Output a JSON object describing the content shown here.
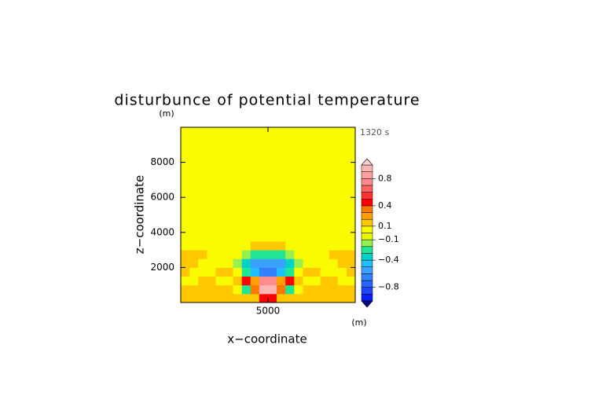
{
  "chart_data": {
    "type": "contour",
    "title": "disturbunce of potential temperature",
    "x_label": "x−coordinate",
    "y_label": "z−coordinate",
    "x_unit": "(m)",
    "y_unit": "(m)",
    "annotation": "1320 s",
    "xlim": [
      0,
      10000
    ],
    "ylim": [
      0,
      10000
    ],
    "xticks": [
      5000
    ],
    "yticks": [
      2000,
      4000,
      6000,
      8000
    ],
    "x": [
      250,
      750,
      1250,
      1750,
      2250,
      2750,
      3250,
      3750,
      4250,
      4750,
      5250,
      5750,
      6250,
      6750,
      7250,
      7750,
      8250,
      8750,
      9250,
      9750
    ],
    "y": [
      250,
      750,
      1250,
      1750,
      2250,
      2750,
      3250,
      3750,
      4250,
      4750,
      5250,
      5750,
      6250,
      6750,
      7250,
      7750,
      8250,
      8750,
      9250,
      9750
    ],
    "z": [
      [
        0.15,
        0.15,
        0.15,
        0.15,
        0.15,
        0.15,
        0.15,
        0.15,
        0.15,
        0.45,
        0.45,
        0.15,
        0.15,
        0.15,
        0.15,
        0.15,
        0.15,
        0.15,
        0.15,
        0.15
      ],
      [
        0.15,
        0.15,
        0.15,
        0.15,
        0.15,
        0.15,
        0.05,
        -0.25,
        0.35,
        0.95,
        0.95,
        0.35,
        -0.25,
        0.05,
        0.15,
        0.15,
        0.15,
        0.15,
        0.15,
        0.15
      ],
      [
        0.05,
        0.05,
        0.15,
        0.15,
        0.05,
        0.05,
        0.15,
        0.45,
        0.25,
        0.75,
        0.75,
        0.25,
        0.45,
        0.15,
        0.05,
        0.05,
        0.15,
        0.15,
        0.05,
        0.05
      ],
      [
        0.15,
        0.05,
        0.05,
        0.05,
        0.15,
        0.15,
        0.05,
        -0.25,
        -0.45,
        -0.65,
        -0.65,
        -0.45,
        -0.25,
        0.05,
        0.15,
        0.15,
        0.05,
        0.05,
        0.05,
        0.15
      ],
      [
        0.15,
        0.15,
        0.05,
        0.05,
        0.05,
        0.05,
        -0.15,
        -0.35,
        -0.55,
        -0.55,
        -0.55,
        -0.55,
        -0.35,
        -0.15,
        0.05,
        0.05,
        0.05,
        0.05,
        0.15,
        0.15
      ],
      [
        0.15,
        0.15,
        0.15,
        0.05,
        0.05,
        0.05,
        0.05,
        -0.15,
        -0.25,
        -0.25,
        -0.25,
        -0.25,
        -0.15,
        0.05,
        0.05,
        0.05,
        0.05,
        0.15,
        0.15,
        0.15
      ],
      [
        0.05,
        0.05,
        0.05,
        0.05,
        0.05,
        0.05,
        0.05,
        0.05,
        0.15,
        0.15,
        0.15,
        0.15,
        0.05,
        0.05,
        0.05,
        0.05,
        0.05,
        0.05,
        0.05,
        0.05
      ],
      [
        0.05,
        0.05,
        0.05,
        0.05,
        0.05,
        0.05,
        0.05,
        0.05,
        0.05,
        0.05,
        0.05,
        0.05,
        0.05,
        0.05,
        0.05,
        0.05,
        0.05,
        0.05,
        0.05,
        0.05
      ],
      [
        0.05,
        0.05,
        0.05,
        0.05,
        0.05,
        0.05,
        0.05,
        0.05,
        0.05,
        0.05,
        0.05,
        0.05,
        0.05,
        0.05,
        0.05,
        0.05,
        0.05,
        0.05,
        0.05,
        0.05
      ],
      [
        0.05,
        0.05,
        0.05,
        0.05,
        0.05,
        0.05,
        0.05,
        0.05,
        0.05,
        0.05,
        0.05,
        0.05,
        0.05,
        0.05,
        0.05,
        0.05,
        0.05,
        0.05,
        0.05,
        0.05
      ],
      [
        0.05,
        0.05,
        0.05,
        0.05,
        0.05,
        0.05,
        0.05,
        0.05,
        0.05,
        0.05,
        0.05,
        0.05,
        0.05,
        0.05,
        0.05,
        0.05,
        0.05,
        0.05,
        0.05,
        0.05
      ],
      [
        0.05,
        0.05,
        0.05,
        0.05,
        0.05,
        0.05,
        0.05,
        0.05,
        0.05,
        0.05,
        0.05,
        0.05,
        0.05,
        0.05,
        0.05,
        0.05,
        0.05,
        0.05,
        0.05,
        0.05
      ],
      [
        0.05,
        0.05,
        0.05,
        0.05,
        0.05,
        0.05,
        0.05,
        0.05,
        0.05,
        0.05,
        0.05,
        0.05,
        0.05,
        0.05,
        0.05,
        0.05,
        0.05,
        0.05,
        0.05,
        0.05
      ],
      [
        0.05,
        0.05,
        0.05,
        0.05,
        0.05,
        0.05,
        0.05,
        0.05,
        0.05,
        0.05,
        0.05,
        0.05,
        0.05,
        0.05,
        0.05,
        0.05,
        0.05,
        0.05,
        0.05,
        0.05
      ],
      [
        0.05,
        0.05,
        0.05,
        0.05,
        0.05,
        0.05,
        0.05,
        0.05,
        0.05,
        0.05,
        0.05,
        0.05,
        0.05,
        0.05,
        0.05,
        0.05,
        0.05,
        0.05,
        0.05,
        0.05
      ],
      [
        0.05,
        0.05,
        0.05,
        0.05,
        0.05,
        0.05,
        0.05,
        0.05,
        0.05,
        0.05,
        0.05,
        0.05,
        0.05,
        0.05,
        0.05,
        0.05,
        0.05,
        0.05,
        0.05,
        0.05
      ],
      [
        0.05,
        0.05,
        0.05,
        0.05,
        0.05,
        0.05,
        0.05,
        0.05,
        0.05,
        0.05,
        0.05,
        0.05,
        0.05,
        0.05,
        0.05,
        0.05,
        0.05,
        0.05,
        0.05,
        0.05
      ],
      [
        0.05,
        0.05,
        0.05,
        0.05,
        0.05,
        0.05,
        0.05,
        0.05,
        0.05,
        0.05,
        0.05,
        0.05,
        0.05,
        0.05,
        0.05,
        0.05,
        0.05,
        0.05,
        0.05,
        0.05
      ],
      [
        0.05,
        0.05,
        0.05,
        0.05,
        0.05,
        0.05,
        0.05,
        0.05,
        0.05,
        0.05,
        0.05,
        0.05,
        0.05,
        0.05,
        0.05,
        0.05,
        0.05,
        0.05,
        0.05,
        0.05
      ],
      [
        0.05,
        0.05,
        0.05,
        0.05,
        0.05,
        0.05,
        0.05,
        0.05,
        0.05,
        0.05,
        0.05,
        0.05,
        0.05,
        0.05,
        0.05,
        0.05,
        0.05,
        0.05,
        0.05,
        0.05
      ]
    ],
    "levels": [
      -1.0,
      -0.9,
      -0.8,
      -0.7,
      -0.6,
      -0.5,
      -0.4,
      -0.3,
      -0.2,
      -0.1,
      0.0,
      0.1,
      0.2,
      0.3,
      0.4,
      0.5,
      0.6,
      0.7,
      0.8,
      0.9,
      1.0
    ],
    "colors": [
      "#0a1eff",
      "#1e46ff",
      "#2864ff",
      "#3282ff",
      "#3ca0ff",
      "#1ebeff",
      "#00d2c8",
      "#1ee696",
      "#96f050",
      "#e6f500",
      "#fafa00",
      "#ffc800",
      "#ffa000",
      "#ff7800",
      "#ff0000",
      "#ff3232",
      "#ff6464",
      "#ff8c8c",
      "#ffa0a0",
      "#ffb4b4"
    ],
    "under_color": "#00008c",
    "over_color": "#ffd2d2",
    "colorbar_ticks": [
      0.8,
      0.4,
      0.1,
      {
        "value": -0.1,
        "label": "−0.1"
      },
      {
        "value": -0.4,
        "label": "−0.4"
      },
      {
        "value": -0.8,
        "label": "−0.8"
      }
    ]
  }
}
